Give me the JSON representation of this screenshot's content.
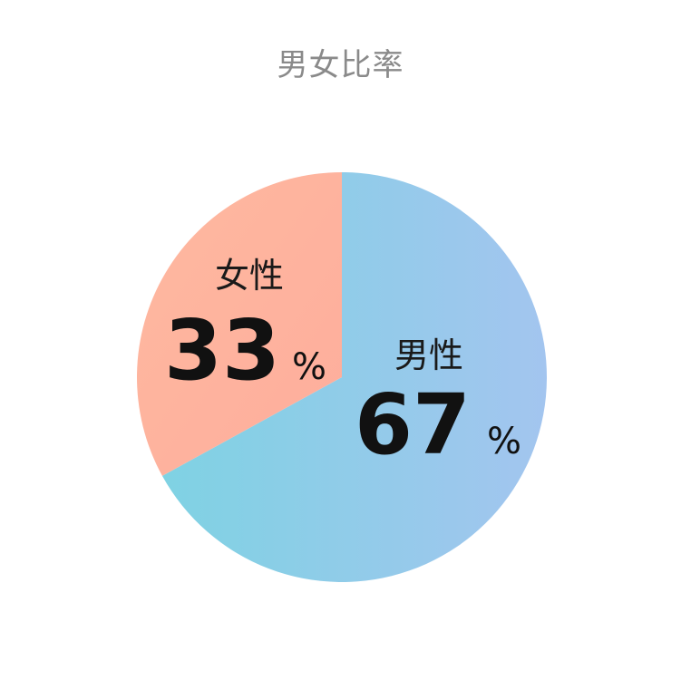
{
  "chart_data": {
    "type": "pie",
    "title": "男女比率",
    "slices": [
      {
        "label": "男性",
        "value": 67,
        "unit": "%",
        "colors": [
          "#7fd2e3",
          "#a3c5ef"
        ]
      },
      {
        "label": "女性",
        "value": 33,
        "unit": "%",
        "colors": [
          "#ffb9a0",
          "#fdad9c"
        ]
      }
    ],
    "start": "top",
    "direction": "clockwise"
  }
}
